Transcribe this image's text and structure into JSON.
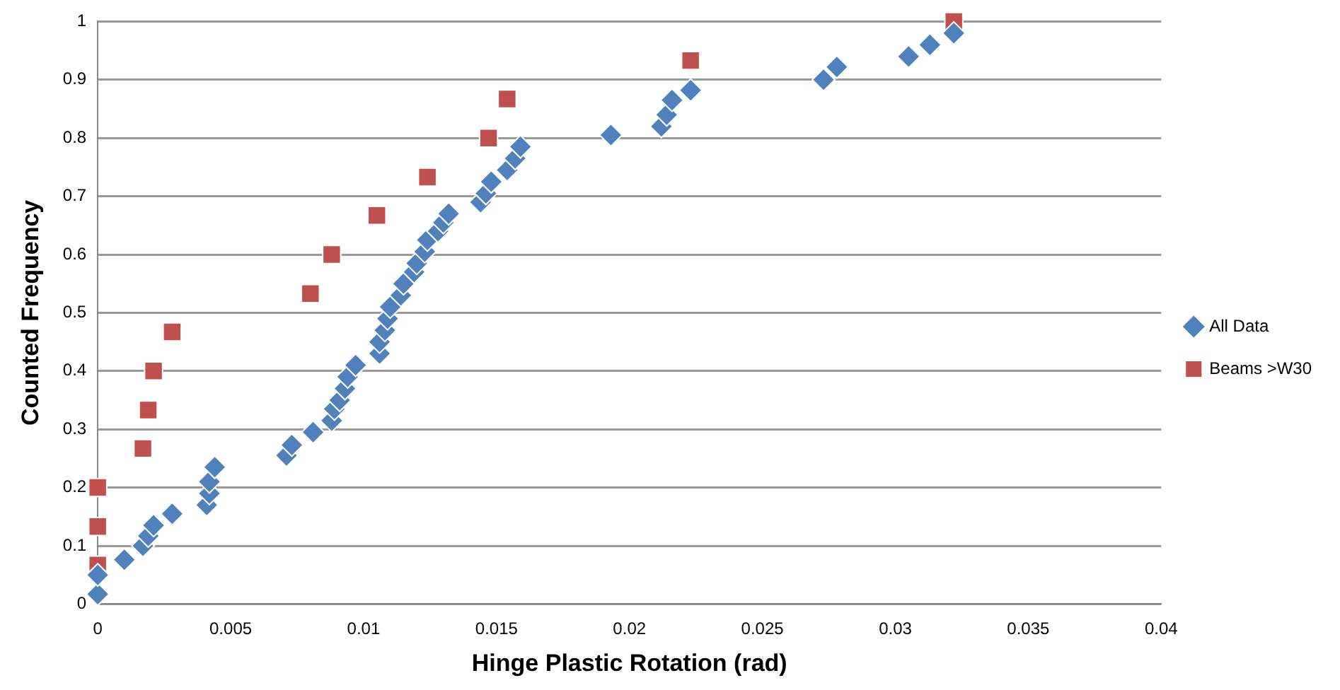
{
  "chart_data": {
    "type": "scatter",
    "xlabel": "Hinge Plastic Rotation (rad)",
    "ylabel": "Counted Frequency",
    "xlim": [
      0,
      0.04
    ],
    "xticks": [
      0,
      0.005,
      0.01,
      0.015,
      0.02,
      0.025,
      0.03,
      0.035,
      0.04
    ],
    "ylim": [
      0,
      1
    ],
    "yticks": [
      0,
      0.1,
      0.2,
      0.3,
      0.4,
      0.5,
      0.6,
      0.7,
      0.8,
      0.9,
      1
    ],
    "grid": "y",
    "legend": "right",
    "series": [
      {
        "name": "All Data",
        "color": "#4f81bd",
        "marker": "diamond",
        "x": [
          0,
          0,
          0.001,
          0.0017,
          0.0019,
          0.0021,
          0.0028,
          0.0041,
          0.0042,
          0.0042,
          0.0044,
          0.0071,
          0.0073,
          0.0081,
          0.0088,
          0.0089,
          0.0091,
          0.0093,
          0.0094,
          0.0097,
          0.0106,
          0.0106,
          0.0108,
          0.0109,
          0.011,
          0.0114,
          0.0115,
          0.0119,
          0.012,
          0.0123,
          0.0124,
          0.0128,
          0.013,
          0.0132,
          0.0144,
          0.0146,
          0.0148,
          0.0154,
          0.0157,
          0.0159,
          0.0193,
          0.0212,
          0.0214,
          0.0216,
          0.0223,
          0.0273,
          0.0278,
          0.0305,
          0.0313,
          0.0322
        ],
        "values": [
          0.017,
          0.05,
          0.076,
          0.1,
          0.117,
          0.135,
          0.155,
          0.17,
          0.19,
          0.21,
          0.235,
          0.255,
          0.273,
          0.295,
          0.315,
          0.335,
          0.35,
          0.37,
          0.39,
          0.41,
          0.43,
          0.45,
          0.47,
          0.49,
          0.51,
          0.53,
          0.55,
          0.57,
          0.585,
          0.605,
          0.625,
          0.64,
          0.655,
          0.67,
          0.69,
          0.705,
          0.725,
          0.745,
          0.765,
          0.785,
          0.805,
          0.82,
          0.84,
          0.865,
          0.882,
          0.9,
          0.922,
          0.94,
          0.96,
          0.98
        ]
      },
      {
        "name": "Beams >W30",
        "color": "#c0504d",
        "marker": "square",
        "x": [
          0,
          0,
          0,
          0.0017,
          0.0019,
          0.0021,
          0.0028,
          0.008,
          0.0088,
          0.0105,
          0.0124,
          0.0147,
          0.0154,
          0.0223,
          0.0322
        ],
        "values": [
          0.067,
          0.133,
          0.2,
          0.267,
          0.333,
          0.4,
          0.467,
          0.533,
          0.6,
          0.667,
          0.733,
          0.8,
          0.867,
          0.933,
          1
        ]
      }
    ]
  }
}
